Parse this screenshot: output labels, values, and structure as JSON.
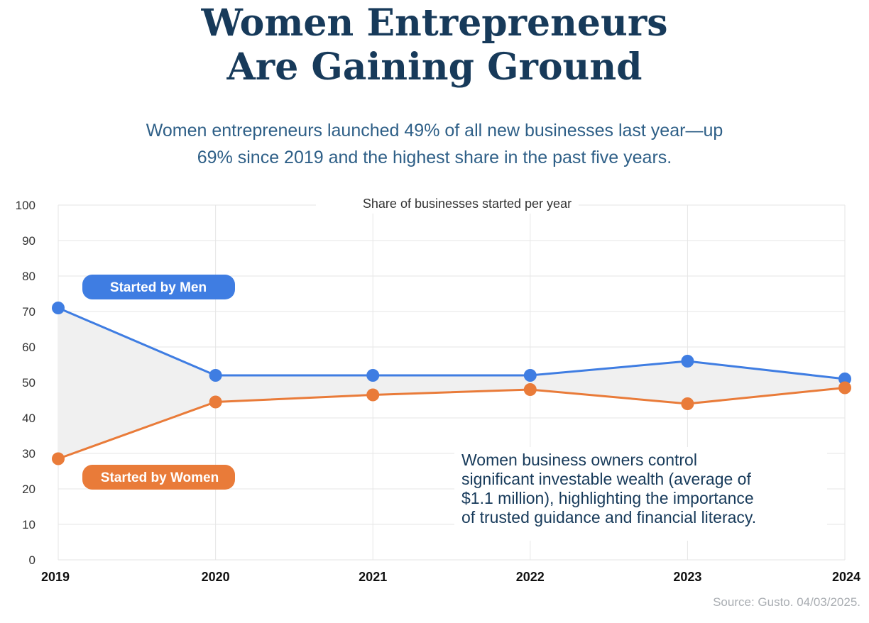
{
  "header": {
    "title_lines": [
      "Women Entrepreneurs",
      "Are Gaining Ground"
    ],
    "subtitle_lines": [
      "Women entrepreneurs launched 49% of all new businesses last year—up",
      "69% since 2019 and the highest share in the past five years."
    ]
  },
  "chart_data": {
    "type": "line",
    "title": "Share of businesses started per year",
    "categories": [
      "2019",
      "2020",
      "2021",
      "2022",
      "2023",
      "2024"
    ],
    "ylim": [
      0,
      100
    ],
    "yticks": [
      "0",
      "10",
      "20",
      "30",
      "40",
      "50",
      "60",
      "70",
      "80",
      "90",
      "100"
    ],
    "series": [
      {
        "name": "Started by Men",
        "color": "#3f7de2",
        "values": [
          71,
          52,
          52,
          52,
          56,
          51
        ]
      },
      {
        "name": "Started by Women",
        "color": "#e97b39",
        "values": [
          28.5,
          44.5,
          46.5,
          48,
          44,
          48.5
        ]
      }
    ],
    "fill_between_color": "#f0f0f0",
    "annotation_lines": [
      "Women business owners control",
      "significant investable wealth (average of",
      "$1.1 million), highlighting the importance",
      "of trusted guidance and financial literacy."
    ]
  },
  "footer": {
    "source": "Source:  Gusto. 04/03/2025."
  }
}
